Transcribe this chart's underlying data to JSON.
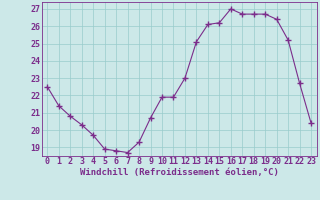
{
  "hours": [
    0,
    1,
    2,
    3,
    4,
    5,
    6,
    7,
    8,
    9,
    10,
    11,
    12,
    13,
    14,
    15,
    16,
    17,
    18,
    19,
    20,
    21,
    22,
    23
  ],
  "values": [
    22.5,
    21.4,
    20.8,
    20.3,
    19.7,
    18.9,
    18.8,
    18.7,
    19.3,
    20.7,
    21.9,
    21.9,
    23.0,
    25.1,
    26.1,
    26.2,
    27.0,
    26.7,
    26.7,
    26.7,
    26.4,
    25.2,
    22.7,
    20.4
  ],
  "line_color": "#7b2d8b",
  "marker": "+",
  "marker_size": 4,
  "marker_lw": 1.0,
  "bg_color": "#cce8e8",
  "grid_color": "#99cccc",
  "xlabel": "Windchill (Refroidissement éolien,°C)",
  "xlim": [
    -0.5,
    23.5
  ],
  "ylim": [
    18.5,
    27.4
  ],
  "yticks": [
    19,
    20,
    21,
    22,
    23,
    24,
    25,
    26,
    27
  ],
  "xticks": [
    0,
    1,
    2,
    3,
    4,
    5,
    6,
    7,
    8,
    9,
    10,
    11,
    12,
    13,
    14,
    15,
    16,
    17,
    18,
    19,
    20,
    21,
    22,
    23
  ],
  "font_color": "#7b2d8b",
  "xlabel_fontsize": 6.5,
  "tick_fontsize": 6.0,
  "linewidth": 0.8
}
